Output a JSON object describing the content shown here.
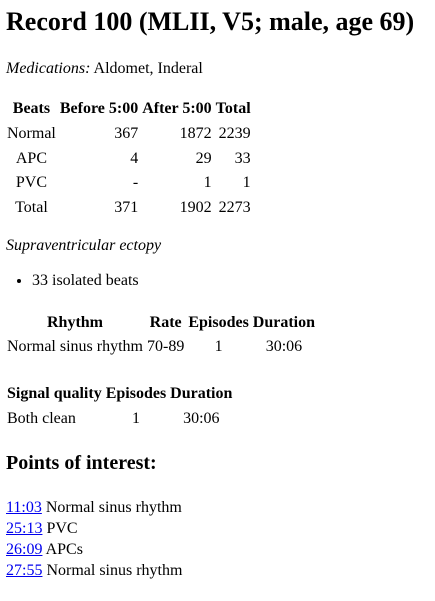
{
  "title": "Record 100 (MLII, V5; male, age 69)",
  "medications": {
    "label": "Medications:",
    "value": "Aldomet, Inderal"
  },
  "beats_table": {
    "headers": [
      "Beats",
      "Before 5:00",
      "After 5:00",
      "Total"
    ],
    "rows": [
      [
        "Normal",
        "367",
        "1872",
        "2239"
      ],
      [
        "APC",
        "4",
        "29",
        "33"
      ],
      [
        "PVC",
        "-",
        "1",
        "1"
      ],
      [
        "Total",
        "371",
        "1902",
        "2273"
      ]
    ]
  },
  "ectopy": {
    "title": "Supraventricular ectopy",
    "items": [
      "33 isolated beats"
    ]
  },
  "rhythm_table": {
    "headers": [
      "Rhythm",
      "Rate",
      "Episodes",
      "Duration"
    ],
    "rows": [
      [
        "Normal sinus rhythm",
        "70-89",
        "1",
        "30:06"
      ]
    ]
  },
  "signal_quality_table": {
    "headers": [
      "Signal quality",
      "Episodes",
      "Duration"
    ],
    "rows": [
      [
        "Both clean",
        "1",
        "30:06"
      ]
    ]
  },
  "points_of_interest": {
    "title": "Points of interest:",
    "items": [
      {
        "time": "11:03",
        "label": "Normal sinus rhythm"
      },
      {
        "time": "25:13",
        "label": "PVC"
      },
      {
        "time": "26:09",
        "label": "APCs"
      },
      {
        "time": "27:55",
        "label": "Normal sinus rhythm"
      }
    ]
  },
  "colors": {
    "link": "#0000ee",
    "text": "#000000",
    "background": "#ffffff"
  }
}
